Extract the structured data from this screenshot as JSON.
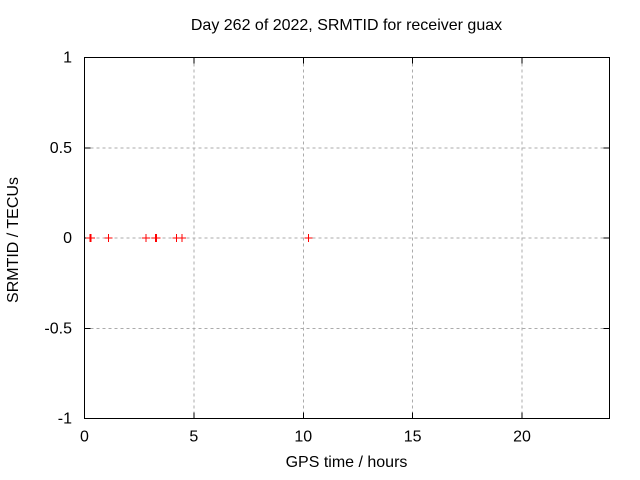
{
  "chart_data": {
    "type": "scatter",
    "title": "Day 262 of 2022, SRMTID for receiver guax",
    "xlabel": "GPS time / hours",
    "ylabel": "SRMTID / TECUs",
    "xlim": [
      0,
      24
    ],
    "ylim": [
      -1,
      1
    ],
    "xticks": [
      {
        "v": 0,
        "label": "0"
      },
      {
        "v": 5,
        "label": "5"
      },
      {
        "v": 10,
        "label": "10"
      },
      {
        "v": 15,
        "label": "15"
      },
      {
        "v": 20,
        "label": "20"
      }
    ],
    "yticks": [
      {
        "v": 1,
        "label": "1"
      },
      {
        "v": 0.5,
        "label": "0.5"
      },
      {
        "v": 0,
        "label": "0"
      },
      {
        "v": -0.5,
        "label": "-0.5"
      },
      {
        "v": -1,
        "label": "-1"
      }
    ],
    "grid": true,
    "legend_position": "none",
    "background_color": "#ffffff",
    "axis_color": "#000000",
    "grid_color": "#ababab",
    "text_color": "#000000",
    "marker": "plus",
    "marker_color": "#ff0000",
    "series": [
      {
        "name": "SRMTID",
        "points": [
          [
            0.25,
            0
          ],
          [
            0.3,
            0
          ],
          [
            1.1,
            0
          ],
          [
            2.8,
            0
          ],
          [
            3.25,
            0
          ],
          [
            3.3,
            0
          ],
          [
            4.2,
            0
          ],
          [
            4.45,
            0
          ],
          [
            10.25,
            0
          ]
        ]
      }
    ]
  }
}
